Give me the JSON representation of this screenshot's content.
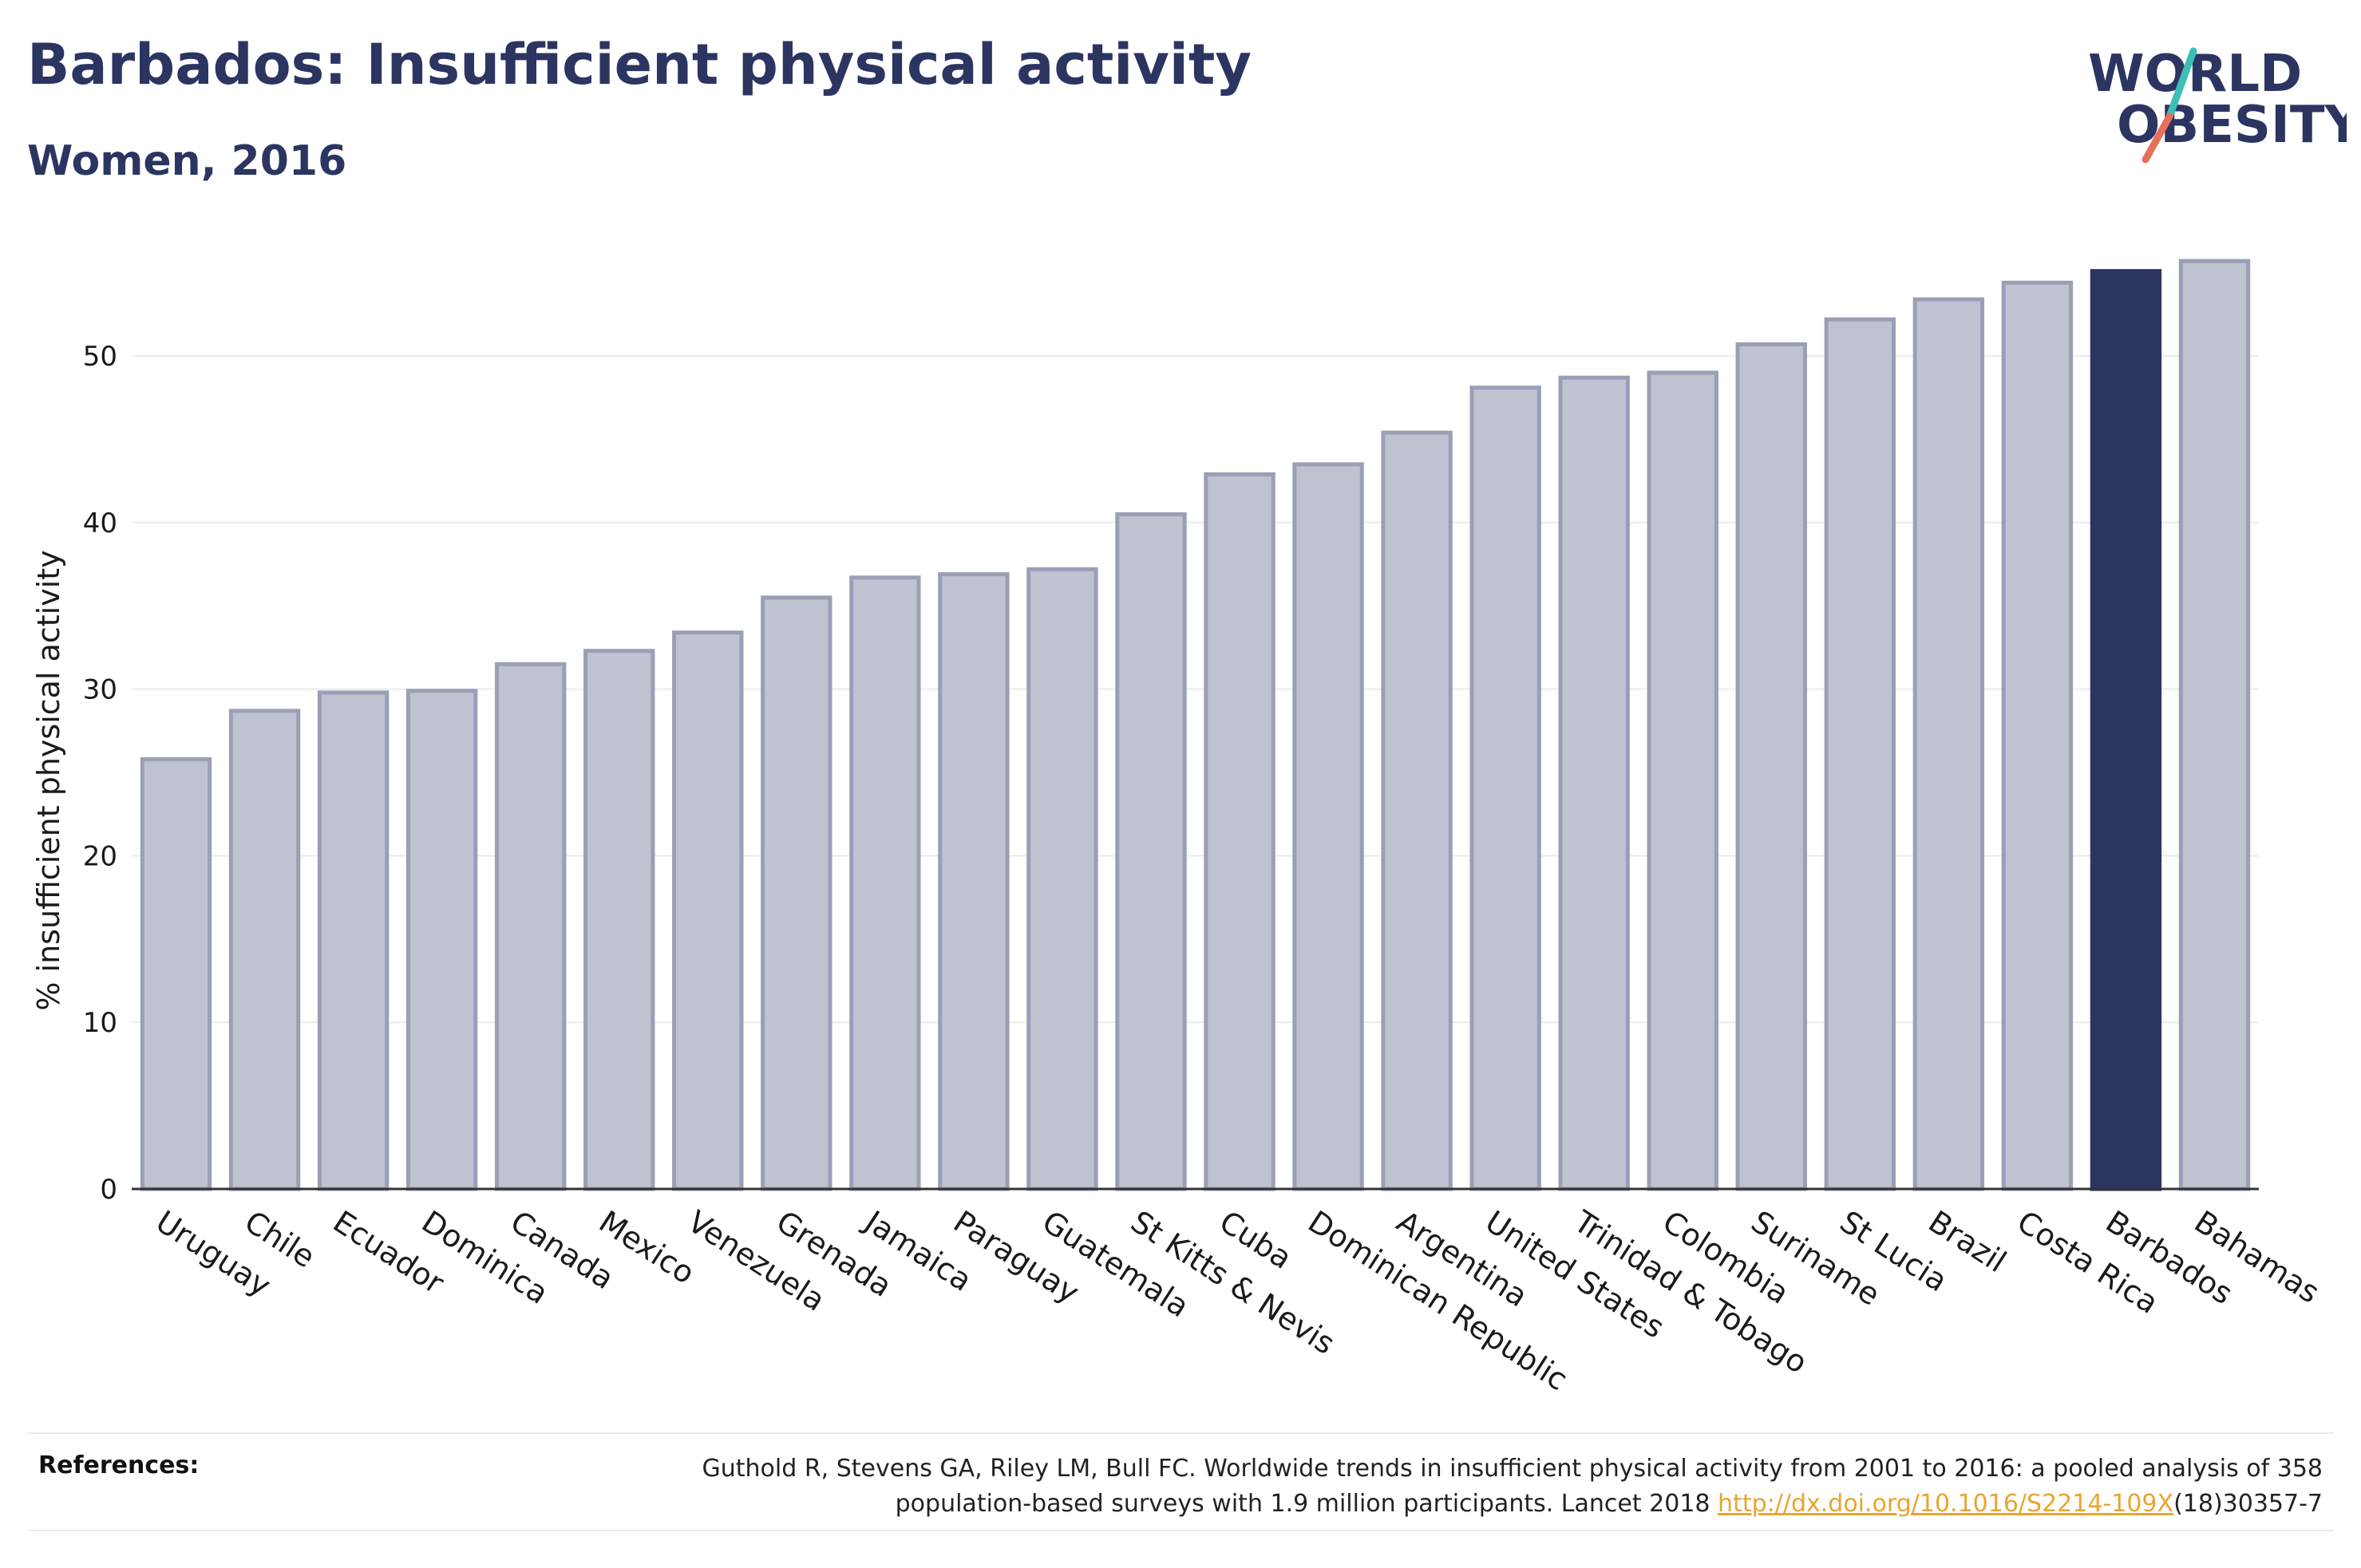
{
  "title": "Barbados: Insufficient physical activity",
  "subtitle": "Women, 2016",
  "logo": {
    "line1": "WORLD",
    "line2": "OBESITY",
    "color": "#2c3561",
    "accent_teal": "#3dbfb8",
    "accent_coral": "#e8705a"
  },
  "colors": {
    "bar": "#bfc2d0",
    "bar_edge": "#9a9fb6",
    "highlight": "#2c3561",
    "grid": "#ebebeb",
    "axis": "#333333"
  },
  "references": {
    "label": "References:",
    "line1": "Guthold R, Stevens GA, Riley LM, Bull FC. Worldwide trends in insufficient physical activity from 2001 to 2016: a pooled analysis of 358",
    "line2_prefix": "population-based surveys with 1.9 million participants. Lancet 2018 ",
    "link": "http://dx.doi.org/10.1016/S2214-109X",
    "line2_suffix": "(18)30357-7"
  },
  "chart_data": {
    "type": "bar",
    "ylabel": "% insufficient physical activity",
    "xlabel": "",
    "ylim": [
      0,
      57
    ],
    "yticks": [
      0,
      10,
      20,
      30,
      40,
      50
    ],
    "grid": true,
    "highlight": "Barbados",
    "categories": [
      "Uruguay",
      "Chile",
      "Ecuador",
      "Dominica",
      "Canada",
      "Mexico",
      "Venezuela",
      "Grenada",
      "Jamaica",
      "Paraguay",
      "Guatemala",
      "St Kitts & Nevis",
      "Cuba",
      "Dominican Republic",
      "Argentina",
      "United States",
      "Trinidad & Tobago",
      "Colombia",
      "Suriname",
      "St Lucia",
      "Brazil",
      "Costa Rica",
      "Barbados",
      "Bahamas"
    ],
    "values": [
      25.8,
      28.7,
      29.8,
      29.9,
      31.5,
      32.3,
      33.4,
      35.5,
      36.7,
      36.9,
      37.2,
      40.5,
      42.9,
      43.5,
      45.4,
      48.1,
      48.7,
      49.0,
      50.7,
      52.2,
      53.4,
      54.4,
      55.1,
      55.7
    ]
  }
}
